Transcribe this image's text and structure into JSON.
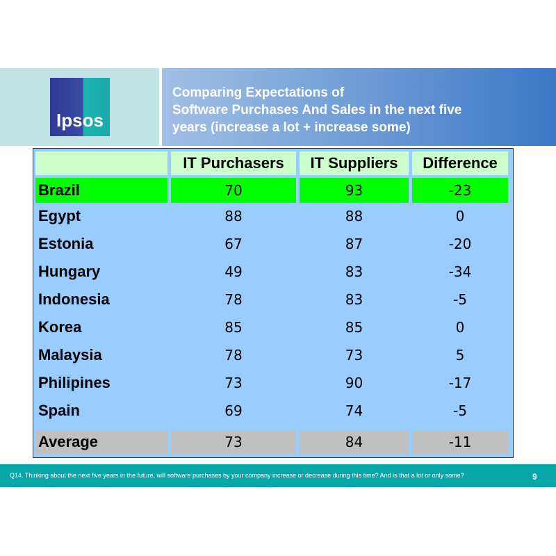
{
  "header": {
    "logo": "Ipsos",
    "title_lines": [
      "Comparing Expectations of",
      "Software Purchases And Sales in the next five",
      "years (increase a lot + increase some)"
    ]
  },
  "table": {
    "columns": [
      "IT Purchasers",
      "IT Suppliers",
      "Difference"
    ],
    "rows": [
      [
        "Brazil",
        70,
        93,
        -23
      ],
      [
        "Egypt",
        88,
        88,
        0
      ],
      [
        "Estonia",
        67,
        87,
        -20
      ],
      [
        "Hungary",
        49,
        83,
        -34
      ],
      [
        "Indonesia",
        78,
        83,
        -5
      ],
      [
        "Korea",
        85,
        85,
        0
      ],
      [
        "Malaysia",
        78,
        73,
        5
      ],
      [
        "Philipines",
        73,
        90,
        -17
      ],
      [
        "Spain",
        69,
        74,
        -5
      ],
      [
        "Average",
        73,
        84,
        -11
      ]
    ]
  },
  "footer": {
    "question": "Q14. Thinking about the next five years in the future, will software purchases by your company increase or decrease during this time?  And is that a lot or only some?",
    "page": 9
  }
}
